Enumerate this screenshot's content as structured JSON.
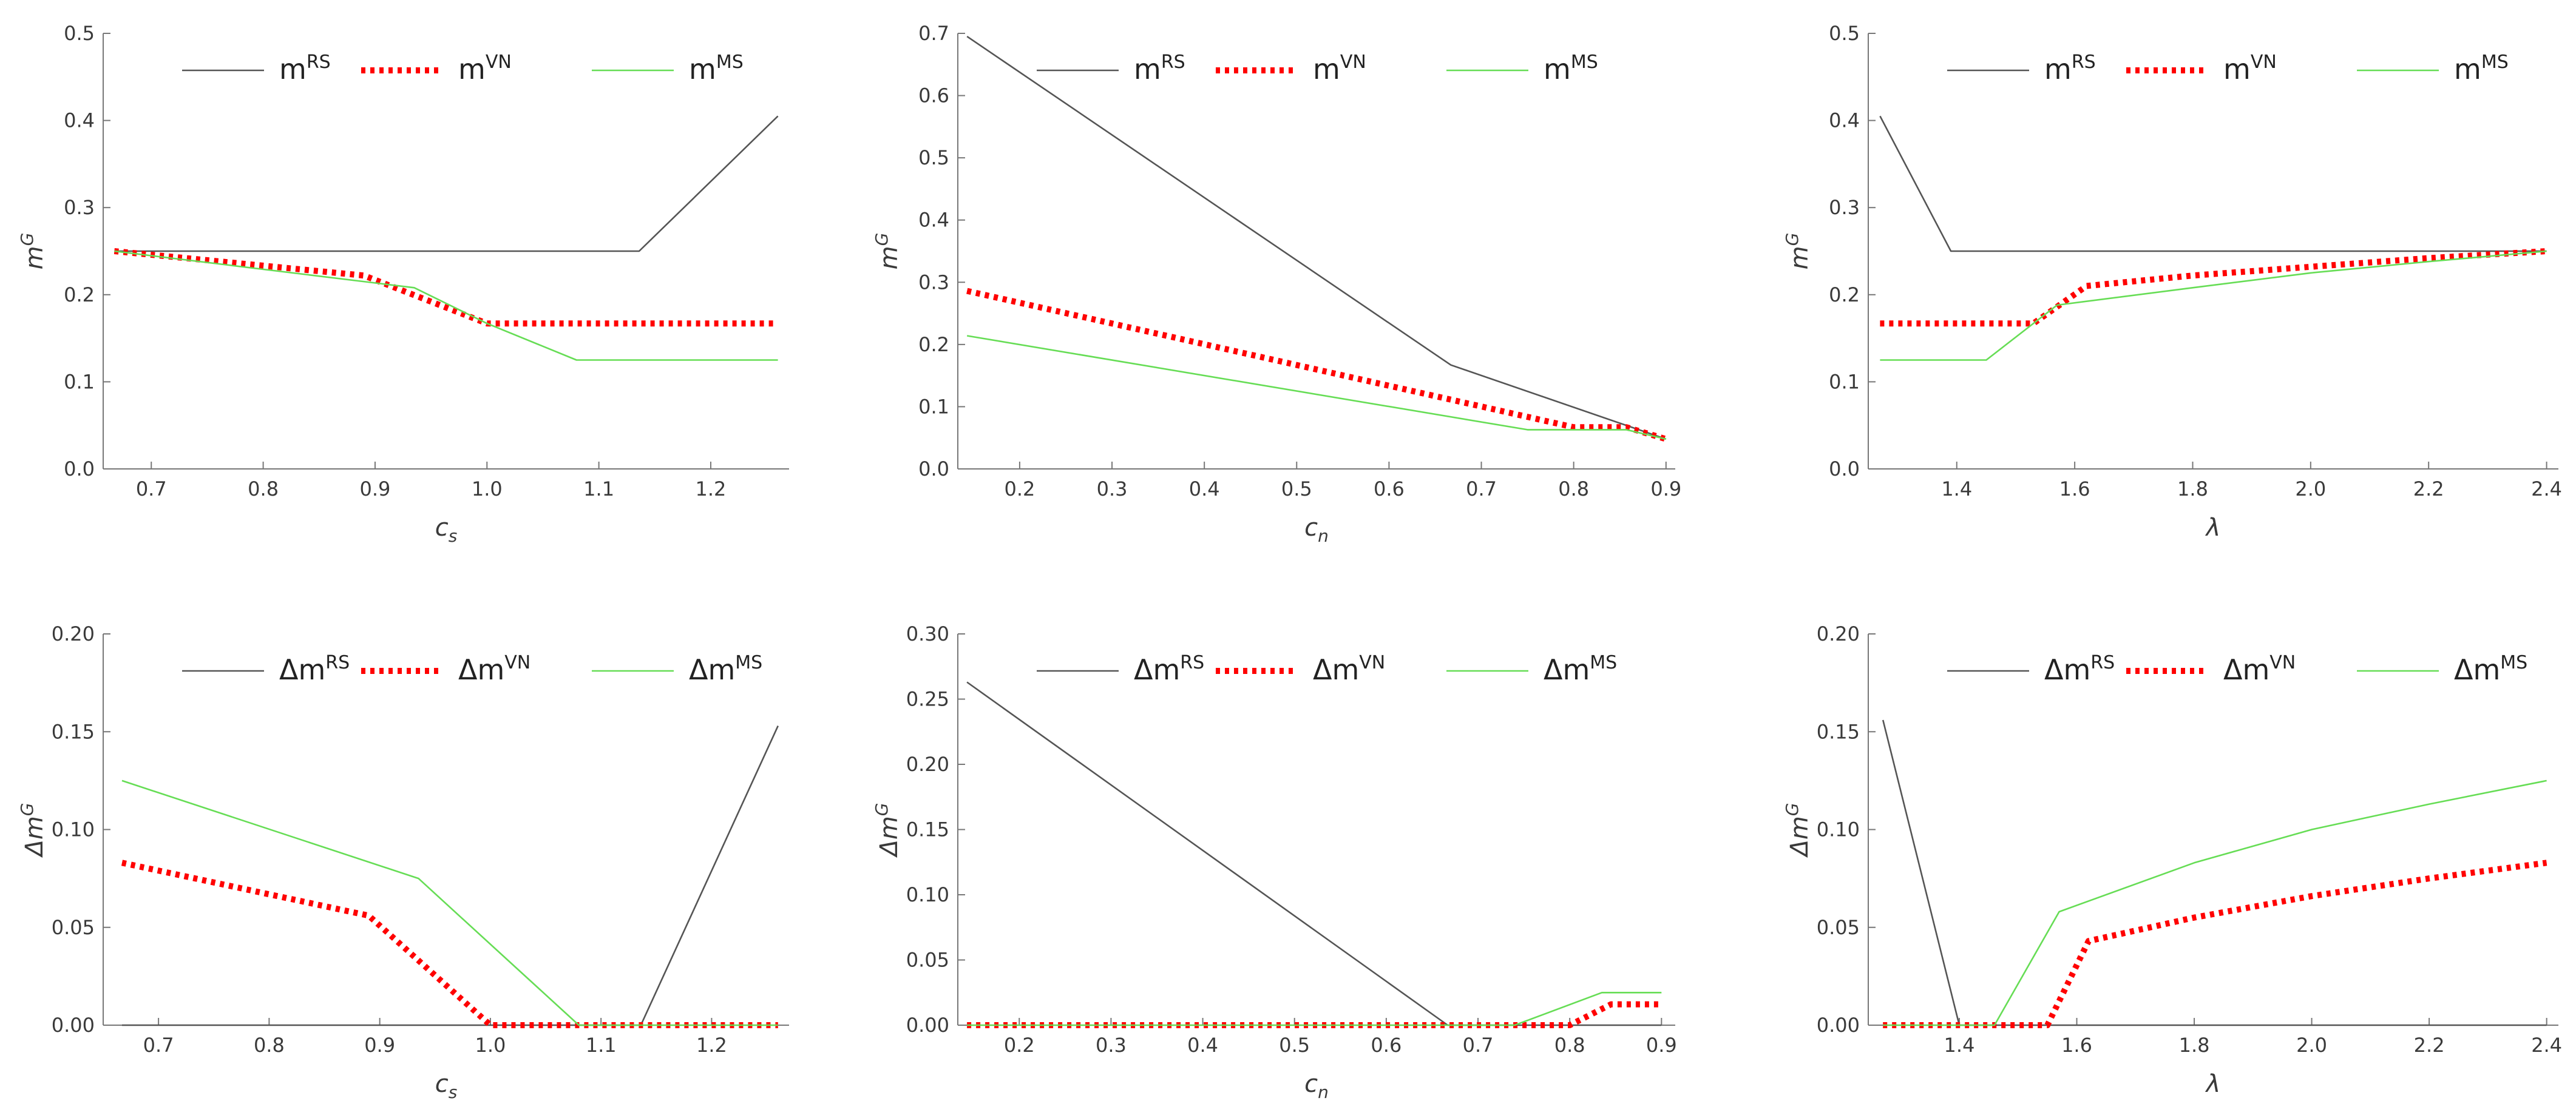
{
  "chart_data": [
    {
      "type": "line",
      "panel": "top-left",
      "xlabel": "c",
      "xlabel_sub": "s",
      "ylabel": "m",
      "ylabel_sup": "G",
      "xlim": [
        0.657,
        1.27
      ],
      "ylim": [
        0,
        0.5
      ],
      "xticks": [
        "0.7",
        "0.8",
        "0.9",
        "1.0",
        "1.1",
        "1.2"
      ],
      "xtick_values": [
        0.7,
        0.8,
        0.9,
        1.0,
        1.1,
        1.2
      ],
      "yticks": [
        "0.0",
        "0.1",
        "0.2",
        "0.3",
        "0.4",
        "0.5"
      ],
      "ytick_values": [
        0,
        0.1,
        0.2,
        0.3,
        0.4,
        0.5
      ],
      "legend_position": "top",
      "series": [
        {
          "name": "m",
          "name_sup": "RS",
          "color": "#555555",
          "style": "solid",
          "x": [
            0.667,
            1.136,
            1.26
          ],
          "y": [
            0.25,
            0.25,
            0.405
          ]
        },
        {
          "name": "m",
          "name_sup": "VN",
          "color": "#ff0000",
          "style": "dotted",
          "x": [
            0.667,
            0.89,
            1.0,
            1.26
          ],
          "y": [
            0.25,
            0.222,
            0.167,
            0.167
          ]
        },
        {
          "name": "m",
          "name_sup": "MS",
          "color": "#66dd55",
          "style": "solid",
          "x": [
            0.667,
            0.935,
            1.0,
            1.08,
            1.26
          ],
          "y": [
            0.25,
            0.208,
            0.167,
            0.125,
            0.125
          ]
        }
      ]
    },
    {
      "type": "line",
      "panel": "top-center",
      "xlabel": "c",
      "xlabel_sub": "n",
      "ylabel": "m",
      "ylabel_sup": "G",
      "xlim": [
        0.133,
        0.91
      ],
      "ylim": [
        0,
        0.7
      ],
      "xticks": [
        "0.2",
        "0.3",
        "0.4",
        "0.5",
        "0.6",
        "0.7",
        "0.8",
        "0.9"
      ],
      "xtick_values": [
        0.2,
        0.3,
        0.4,
        0.5,
        0.6,
        0.7,
        0.8,
        0.9
      ],
      "yticks": [
        "0.0",
        "0.1",
        "0.2",
        "0.3",
        "0.4",
        "0.5",
        "0.6",
        "0.7"
      ],
      "ytick_values": [
        0,
        0.1,
        0.2,
        0.3,
        0.4,
        0.5,
        0.6,
        0.7
      ],
      "legend_position": "top",
      "series": [
        {
          "name": "m",
          "name_sup": "RS",
          "color": "#555555",
          "style": "solid",
          "x": [
            0.143,
            0.667,
            0.9
          ],
          "y": [
            0.695,
            0.167,
            0.048
          ]
        },
        {
          "name": "m",
          "name_sup": "VN",
          "color": "#ff0000",
          "style": "dotted",
          "x": [
            0.143,
            0.8,
            0.857,
            0.9
          ],
          "y": [
            0.286,
            0.067,
            0.067,
            0.048
          ]
        },
        {
          "name": "m",
          "name_sup": "MS",
          "color": "#66dd55",
          "style": "solid",
          "x": [
            0.143,
            0.75,
            0.857,
            0.9
          ],
          "y": [
            0.214,
            0.063,
            0.063,
            0.048
          ]
        }
      ]
    },
    {
      "type": "line",
      "panel": "top-right",
      "xlabel": "λ",
      "xlabel_sub": "",
      "ylabel": "m",
      "ylabel_sup": "G",
      "xlim": [
        1.25,
        2.42
      ],
      "ylim": [
        0,
        0.5
      ],
      "xticks": [
        "1.4",
        "1.6",
        "1.8",
        "2.0",
        "2.2",
        "2.4"
      ],
      "xtick_values": [
        1.4,
        1.6,
        1.8,
        2.0,
        2.2,
        2.4
      ],
      "yticks": [
        "0.0",
        "0.1",
        "0.2",
        "0.3",
        "0.4",
        "0.5"
      ],
      "ytick_values": [
        0,
        0.1,
        0.2,
        0.3,
        0.4,
        0.5
      ],
      "legend_position": "top",
      "series": [
        {
          "name": "m",
          "name_sup": "RS",
          "color": "#555555",
          "style": "solid",
          "x": [
            1.27,
            1.39,
            2.4
          ],
          "y": [
            0.405,
            0.25,
            0.25
          ]
        },
        {
          "name": "m",
          "name_sup": "VN",
          "color": "#ff0000",
          "style": "dotted",
          "x": [
            1.27,
            1.53,
            1.62,
            1.8,
            2.0,
            2.2,
            2.4
          ],
          "y": [
            0.167,
            0.167,
            0.21,
            0.222,
            0.232,
            0.242,
            0.25
          ]
        },
        {
          "name": "m",
          "name_sup": "MS",
          "color": "#66dd55",
          "style": "solid",
          "x": [
            1.27,
            1.45,
            1.57,
            1.8,
            2.0,
            2.2,
            2.4
          ],
          "y": [
            0.125,
            0.125,
            0.188,
            0.208,
            0.225,
            0.238,
            0.25
          ]
        }
      ]
    },
    {
      "type": "line",
      "panel": "bottom-left",
      "xlabel": "c",
      "xlabel_sub": "s",
      "ylabel": "Δm",
      "ylabel_sup": "G",
      "xlim": [
        0.65,
        1.27
      ],
      "ylim": [
        0,
        0.2
      ],
      "xticks": [
        "0.7",
        "0.8",
        "0.9",
        "1.0",
        "1.1",
        "1.2"
      ],
      "xtick_values": [
        0.7,
        0.8,
        0.9,
        1.0,
        1.1,
        1.2
      ],
      "yticks": [
        "0.00",
        "0.05",
        "0.10",
        "0.15",
        "0.20"
      ],
      "ytick_values": [
        0,
        0.05,
        0.1,
        0.15,
        0.2
      ],
      "legend_position": "top",
      "series": [
        {
          "name": "Δm",
          "name_sup": "RS",
          "color": "#555555",
          "style": "solid",
          "x": [
            0.667,
            1.136,
            1.26
          ],
          "y": [
            0,
            0,
            0.153
          ]
        },
        {
          "name": "Δm",
          "name_sup": "VN",
          "color": "#ff0000",
          "style": "dotted",
          "x": [
            0.667,
            0.89,
            1.0,
            1.26
          ],
          "y": [
            0.083,
            0.056,
            0,
            0
          ]
        },
        {
          "name": "Δm",
          "name_sup": "MS",
          "color": "#66dd55",
          "style": "solid",
          "x": [
            0.667,
            0.935,
            1.08,
            1.26
          ],
          "y": [
            0.125,
            0.075,
            0,
            0
          ]
        }
      ]
    },
    {
      "type": "line",
      "panel": "bottom-center",
      "xlabel": "c",
      "xlabel_sub": "n",
      "ylabel": "Δm",
      "ylabel_sup": "G",
      "xlim": [
        0.133,
        0.915
      ],
      "ylim": [
        0,
        0.3
      ],
      "xticks": [
        "0.2",
        "0.3",
        "0.4",
        "0.5",
        "0.6",
        "0.7",
        "0.8",
        "0.9"
      ],
      "xtick_values": [
        0.2,
        0.3,
        0.4,
        0.5,
        0.6,
        0.7,
        0.8,
        0.9
      ],
      "yticks": [
        "0.00",
        "0.05",
        "0.10",
        "0.15",
        "0.20",
        "0.25",
        "0.30"
      ],
      "ytick_values": [
        0,
        0.05,
        0.1,
        0.15,
        0.2,
        0.25,
        0.3
      ],
      "legend_position": "top",
      "series": [
        {
          "name": "Δm",
          "name_sup": "RS",
          "color": "#555555",
          "style": "solid",
          "x": [
            0.143,
            0.667,
            0.9
          ],
          "y": [
            0.263,
            0,
            0
          ]
        },
        {
          "name": "Δm",
          "name_sup": "VN",
          "color": "#ff0000",
          "style": "dotted",
          "x": [
            0.143,
            0.8,
            0.845,
            0.9
          ],
          "y": [
            0,
            0,
            0.016,
            0.016
          ]
        },
        {
          "name": "Δm",
          "name_sup": "MS",
          "color": "#66dd55",
          "style": "solid",
          "x": [
            0.143,
            0.74,
            0.835,
            0.9
          ],
          "y": [
            0,
            0,
            0.025,
            0.025
          ]
        }
      ]
    },
    {
      "type": "line",
      "panel": "bottom-right",
      "xlabel": "λ",
      "xlabel_sub": "",
      "ylabel": "Δm",
      "ylabel_sup": "G",
      "xlim": [
        1.245,
        2.42
      ],
      "ylim": [
        0,
        0.2
      ],
      "xticks": [
        "1.4",
        "1.6",
        "1.8",
        "2.0",
        "2.2",
        "2.4"
      ],
      "xtick_values": [
        1.4,
        1.6,
        1.8,
        2.0,
        2.2,
        2.4
      ],
      "yticks": [
        "0.00",
        "0.05",
        "0.10",
        "0.15",
        "0.20"
      ],
      "ytick_values": [
        0,
        0.05,
        0.1,
        0.15,
        0.2
      ],
      "legend_position": "top",
      "series": [
        {
          "name": "Δm",
          "name_sup": "RS",
          "color": "#555555",
          "style": "solid",
          "x": [
            1.27,
            1.4,
            2.4
          ],
          "y": [
            0.156,
            0,
            0
          ]
        },
        {
          "name": "Δm",
          "name_sup": "VN",
          "color": "#ff0000",
          "style": "dotted",
          "x": [
            1.27,
            1.55,
            1.62,
            1.8,
            2.0,
            2.2,
            2.4
          ],
          "y": [
            0,
            0,
            0.043,
            0.055,
            0.066,
            0.075,
            0.083
          ]
        },
        {
          "name": "Δm",
          "name_sup": "MS",
          "color": "#66dd55",
          "style": "solid",
          "x": [
            1.27,
            1.46,
            1.57,
            1.8,
            2.0,
            2.2,
            2.4
          ],
          "y": [
            0,
            0,
            0.058,
            0.083,
            0.1,
            0.113,
            0.125
          ]
        }
      ]
    }
  ]
}
